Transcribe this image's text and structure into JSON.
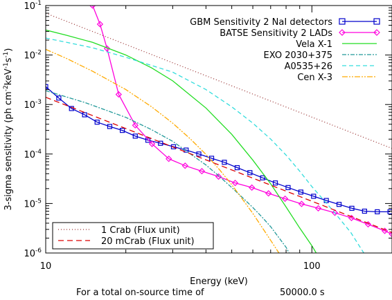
{
  "chart_data": {
    "type": "line",
    "x_scale": "log",
    "y_scale": "log",
    "xlim": [
      10,
      200
    ],
    "ylim": [
      1e-06,
      0.1
    ],
    "xlabel": "Energy (keV)",
    "ylabel_parts": {
      "base": "3-sigma sensitivity (ph cm",
      "exp1": "-2",
      "mid": "keV",
      "exp2": "-1",
      "s": "s",
      "exp3": "-1",
      "close": ")"
    },
    "x_ticks": [
      {
        "value": 10,
        "label": "10"
      },
      {
        "value": 100,
        "label": "100"
      }
    ],
    "y_ticks": [
      {
        "value": 1e-06,
        "mant": "10",
        "exp": "-6"
      },
      {
        "value": 1e-05,
        "mant": "10",
        "exp": "-5"
      },
      {
        "value": 0.0001,
        "mant": "10",
        "exp": "-4"
      },
      {
        "value": 0.001,
        "mant": "10",
        "exp": "-3"
      },
      {
        "value": 0.01,
        "mant": "10",
        "exp": "-2"
      },
      {
        "value": 0.1,
        "mant": "10",
        "exp": "-1"
      }
    ],
    "footnote": {
      "prefix": "For a total on-source time of",
      "value": "50000.0 s"
    },
    "series": [
      {
        "name": "GBM Sensitivity 2 NaI detectors",
        "color": "#0000cc",
        "dash": "",
        "marker": "square",
        "points": [
          [
            10,
            0.0023
          ],
          [
            11.2,
            0.00135
          ],
          [
            12.5,
            0.00083
          ],
          [
            14.0,
            0.00062
          ],
          [
            15.6,
            0.00044
          ],
          [
            17.4,
            0.00036
          ],
          [
            19.4,
            0.0003
          ],
          [
            21.7,
            0.00023
          ],
          [
            24.2,
            0.00019
          ],
          [
            27.0,
            0.000165
          ],
          [
            30.2,
            0.00014
          ],
          [
            33.7,
            0.00012
          ],
          [
            37.6,
            0.0001
          ],
          [
            42.0,
            8.2e-05
          ],
          [
            46.9,
            6.8e-05
          ],
          [
            52.4,
            5.3e-05
          ],
          [
            58.5,
            4.2e-05
          ],
          [
            65.3,
            3.3e-05
          ],
          [
            72.9,
            2.6e-05
          ],
          [
            81.4,
            2.1e-05
          ],
          [
            90.9,
            1.7e-05
          ],
          [
            101.5,
            1.4e-05
          ],
          [
            113.3,
            1.15e-05
          ],
          [
            126.5,
            9.6e-06
          ],
          [
            141.3,
            8e-06
          ],
          [
            157.7,
            7e-06
          ],
          [
            176.1,
            6.8e-06
          ],
          [
            196.6,
            6.8e-06
          ]
        ]
      },
      {
        "name": "BATSE Sensitivity 2 LADs",
        "color": "#ff00dd",
        "dash": "",
        "marker": "diamond",
        "points": [
          [
            15.0,
            0.1
          ],
          [
            16.0,
            0.042
          ],
          [
            17.0,
            0.0135
          ],
          [
            18.8,
            0.0016
          ],
          [
            21.7,
            0.00038
          ],
          [
            25.1,
            0.00016
          ],
          [
            29.0,
            8e-05
          ],
          [
            33.4,
            5.8e-05
          ],
          [
            38.6,
            4.5e-05
          ],
          [
            44.6,
            3.5e-05
          ],
          [
            51.5,
            2.6e-05
          ],
          [
            59.5,
            2.1e-05
          ],
          [
            68.7,
            1.6e-05
          ],
          [
            79.3,
            1.25e-05
          ],
          [
            91.5,
            9.8e-06
          ],
          [
            105.7,
            8e-06
          ],
          [
            122.0,
            6.5e-06
          ],
          [
            140.9,
            5.1e-06
          ],
          [
            162.7,
            3.8e-06
          ],
          [
            187.9,
            2.8e-06
          ],
          [
            200,
            2.4e-06
          ]
        ]
      },
      {
        "name": "Vela X-1",
        "color": "#22dd22",
        "dash": "",
        "marker": "none",
        "points": [
          [
            10,
            0.032
          ],
          [
            12,
            0.025
          ],
          [
            15,
            0.018
          ],
          [
            20,
            0.01
          ],
          [
            25,
            0.0055
          ],
          [
            30,
            0.003
          ],
          [
            40,
            0.00085
          ],
          [
            50,
            0.00025
          ],
          [
            60,
            7.5e-05
          ],
          [
            70,
            2.5e-05
          ],
          [
            80,
            8.5e-06
          ],
          [
            90,
            3.2e-06
          ],
          [
            100,
            1.4e-06
          ],
          [
            115,
            4e-07
          ]
        ]
      },
      {
        "name": "EXO 2030+375",
        "color": "#229999",
        "dash": "6,2,2,2",
        "marker": "none",
        "points": [
          [
            10,
            0.0019
          ],
          [
            14,
            0.0011
          ],
          [
            20,
            0.00055
          ],
          [
            25,
            0.00031
          ],
          [
            30,
            0.00018
          ],
          [
            35,
            0.0001
          ],
          [
            40,
            6e-05
          ],
          [
            45,
            3.5e-05
          ],
          [
            50,
            2.1e-05
          ],
          [
            55,
            1.3e-05
          ],
          [
            60,
            8.3e-06
          ],
          [
            65,
            5.3e-06
          ],
          [
            70,
            3.4e-06
          ],
          [
            80,
            1.3e-06
          ],
          [
            90,
            4e-07
          ]
        ]
      },
      {
        "name": "A0535+26",
        "color": "#33dddd",
        "dash": "6,4",
        "marker": "none",
        "points": [
          [
            10,
            0.022
          ],
          [
            12,
            0.018
          ],
          [
            15,
            0.014
          ],
          [
            20,
            0.009
          ],
          [
            30,
            0.0045
          ],
          [
            40,
            0.002
          ],
          [
            50,
            0.0009
          ],
          [
            60,
            0.00042
          ],
          [
            70,
            0.0002
          ],
          [
            80,
            9.5e-05
          ],
          [
            90,
            4.5e-05
          ],
          [
            100,
            2.2e-05
          ],
          [
            120,
            7.2e-06
          ],
          [
            140,
            2.6e-06
          ],
          [
            170,
            5e-07
          ]
        ]
      },
      {
        "name": "Cen X-3",
        "color": "#ffaa00",
        "dash": "8,2,2,2,2,2",
        "marker": "none",
        "points": [
          [
            10,
            0.013
          ],
          [
            12,
            0.0085
          ],
          [
            15,
            0.0047
          ],
          [
            20,
            0.002
          ],
          [
            25,
            0.0009
          ],
          [
            30,
            0.00042
          ],
          [
            35,
            0.0002
          ],
          [
            40,
            9.8e-05
          ],
          [
            45,
            4.8e-05
          ],
          [
            50,
            2.4e-05
          ],
          [
            55,
            1.2e-05
          ],
          [
            60,
            6.3e-06
          ],
          [
            70,
            1.8e-06
          ],
          [
            80,
            6e-07
          ]
        ]
      },
      {
        "name": "1 Crab (Flux unit)",
        "color": "#993333",
        "dash": "1,3",
        "marker": "none",
        "power_law": {
          "amp": 0.07,
          "index": 2.1
        }
      },
      {
        "name": "20 mCrab (Flux unit)",
        "color": "#dd0000",
        "dash": "8,5",
        "marker": "none",
        "power_law": {
          "amp": 0.0014,
          "index": 2.1
        }
      }
    ],
    "legend_top": {
      "placement": "top-right",
      "items": [
        "GBM Sensitivity 2 NaI detectors",
        "BATSE Sensitivity 2 LADs",
        "Vela X-1",
        "EXO 2030+375",
        "A0535+26",
        "Cen X-3"
      ]
    },
    "legend_bottom": {
      "placement": "bottom-left",
      "items": [
        "1 Crab (Flux unit)",
        "20 mCrab (Flux unit)"
      ]
    }
  }
}
